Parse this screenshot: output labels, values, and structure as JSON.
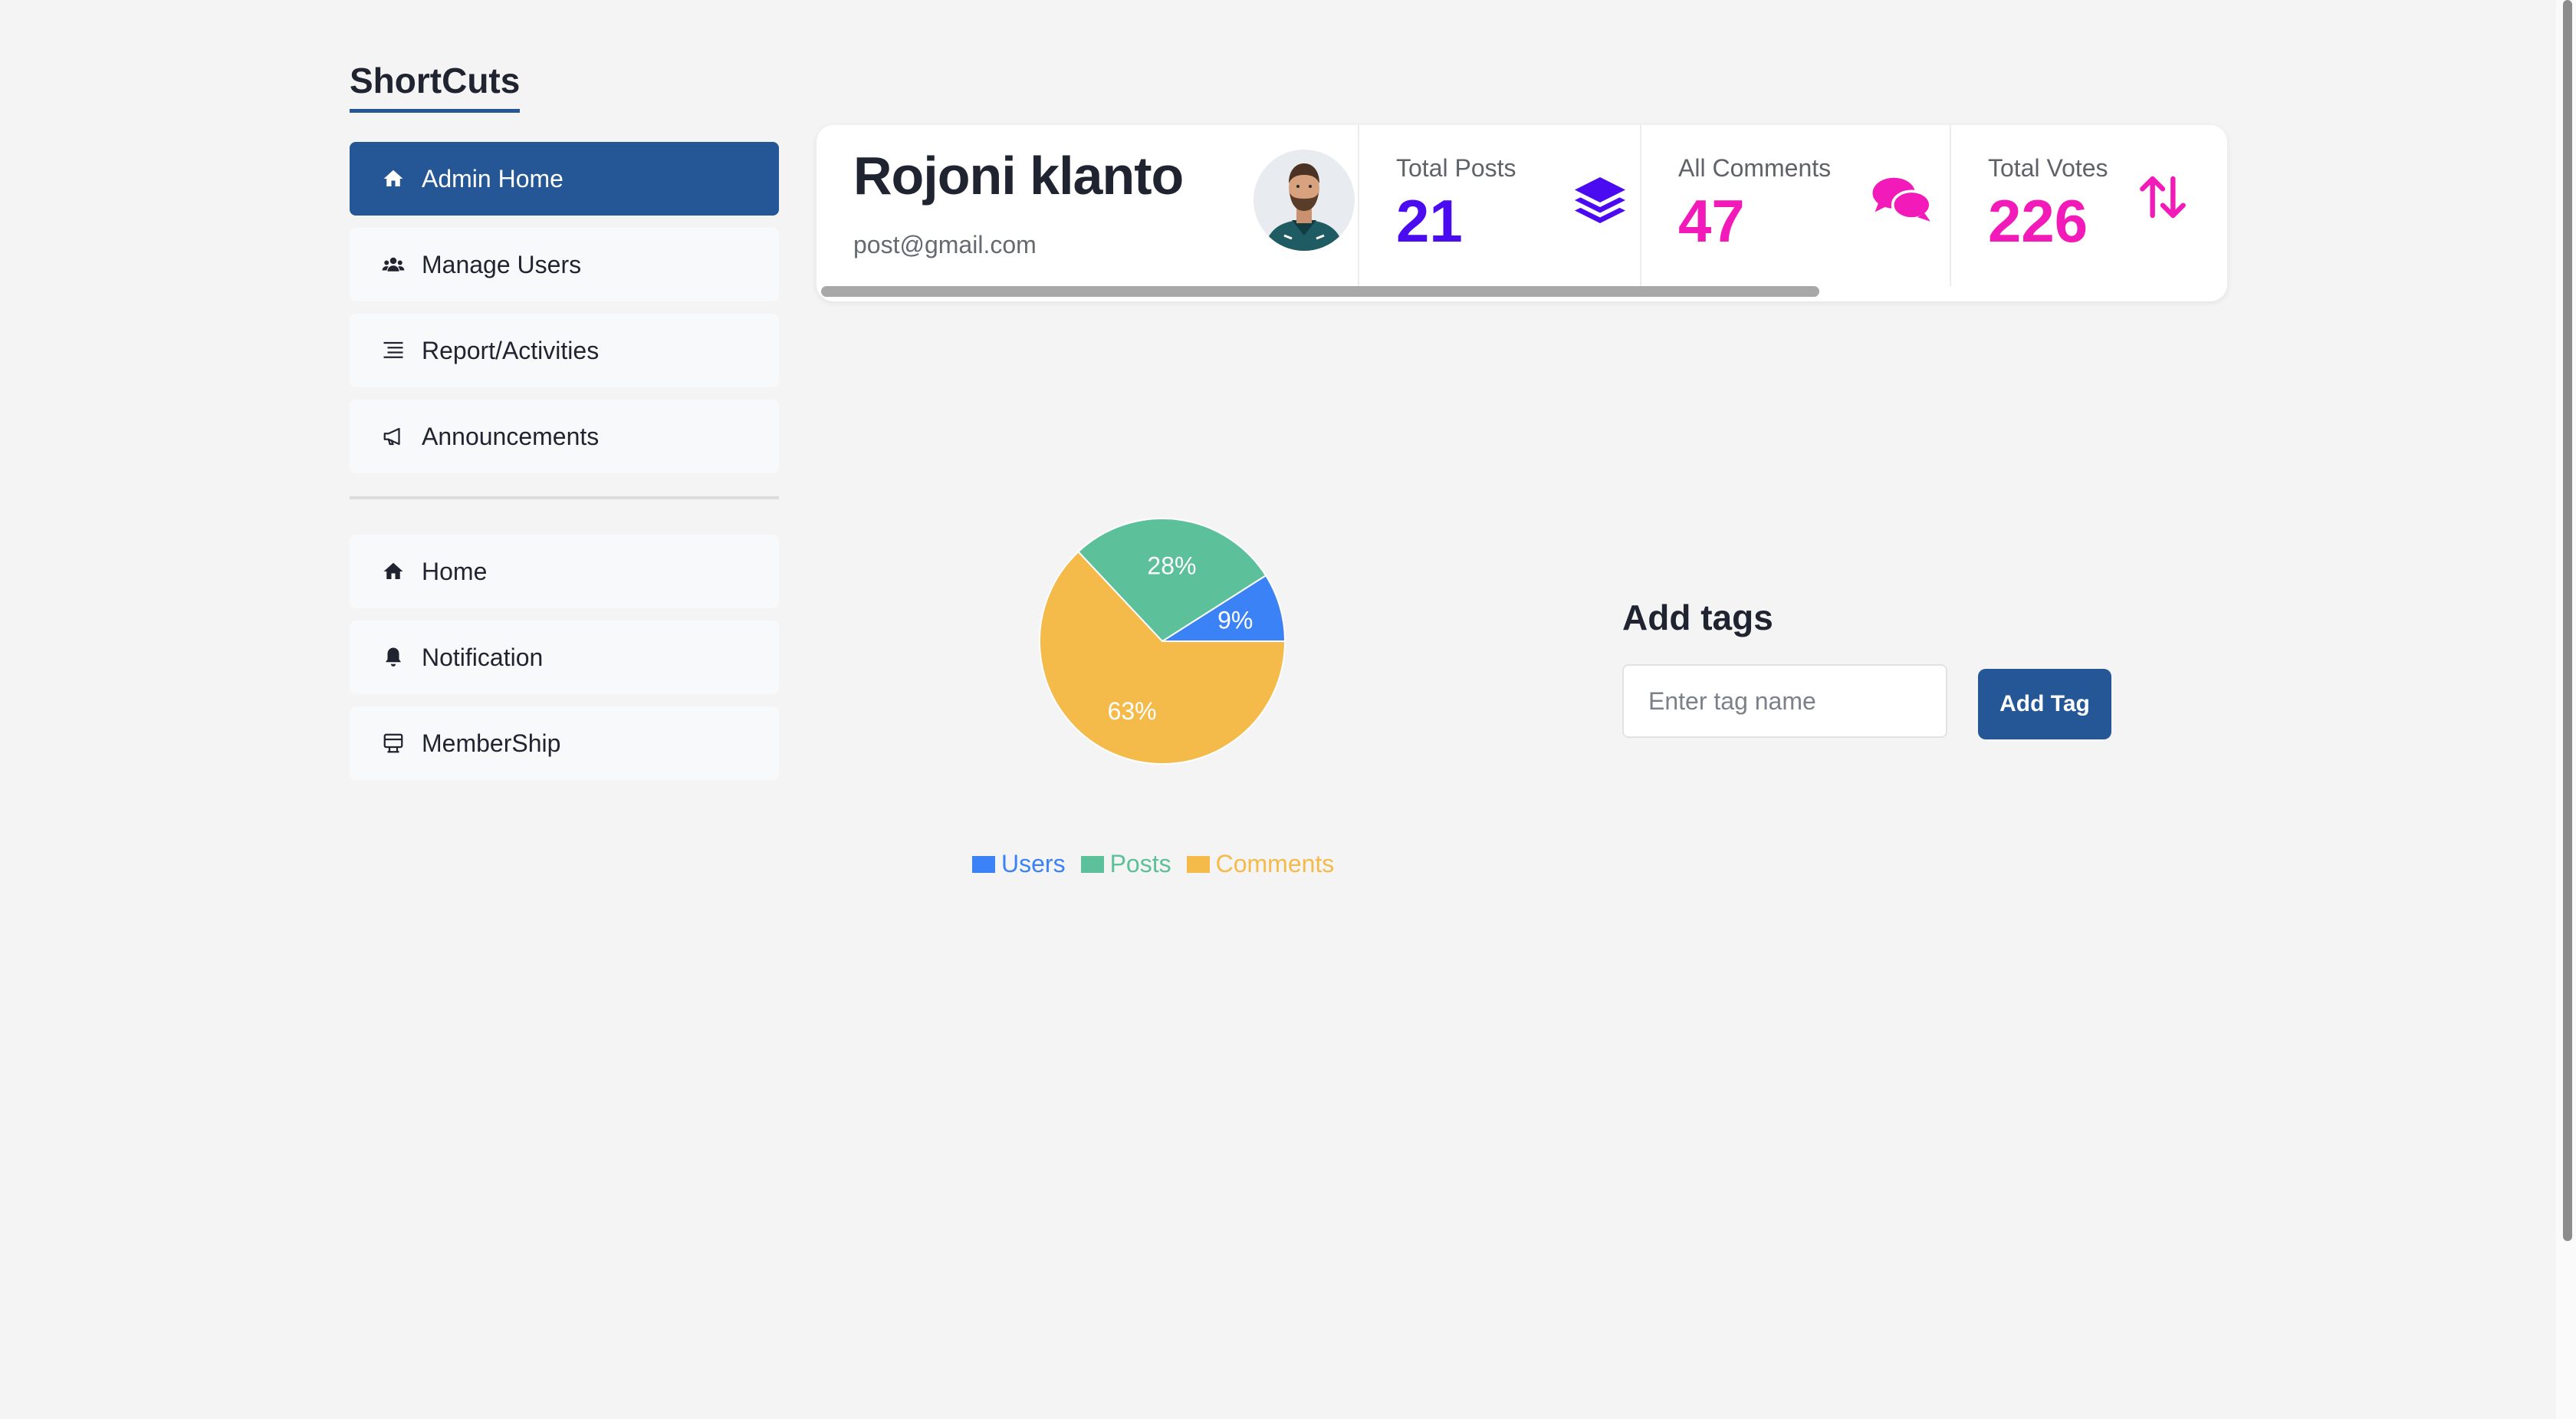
{
  "sidebar": {
    "title": "ShortCuts",
    "primary_items": [
      {
        "label": "Admin Home",
        "icon": "home-icon",
        "active": true
      },
      {
        "label": "Manage Users",
        "icon": "users-icon",
        "active": false
      },
      {
        "label": "Report/Activities",
        "icon": "list-icon",
        "active": false
      },
      {
        "label": "Announcements",
        "icon": "megaphone-icon",
        "active": false
      }
    ],
    "secondary_items": [
      {
        "label": "Home",
        "icon": "home-icon"
      },
      {
        "label": "Notification",
        "icon": "bell-icon"
      },
      {
        "label": "MemberShip",
        "icon": "membership-icon"
      }
    ]
  },
  "profile": {
    "name": "Rojoni klanto",
    "email": "post@gmail.com"
  },
  "stats": [
    {
      "label": "Total Posts",
      "value": "21",
      "icon": "layers-icon",
      "color": "#4a0bf0"
    },
    {
      "label": "All Comments",
      "value": "47",
      "icon": "comments-icon",
      "color": "#f21ab8"
    },
    {
      "label": "Total Votes",
      "value": "226",
      "icon": "sort-arrows-icon",
      "color": "#f21ab8"
    }
  ],
  "chart_data": {
    "type": "pie",
    "categories": [
      "Users",
      "Posts",
      "Comments"
    ],
    "values": [
      9,
      28,
      63
    ],
    "labels": [
      "9%",
      "28%",
      "63%"
    ],
    "colors": [
      "#3b82f6",
      "#5cc09a",
      "#f4bb4b"
    ],
    "legend_position": "bottom"
  },
  "tags": {
    "title": "Add tags",
    "input_placeholder": "Enter tag name",
    "button_label": "Add Tag"
  },
  "colors": {
    "accent": "#255796",
    "background": "#f4f4f4"
  }
}
